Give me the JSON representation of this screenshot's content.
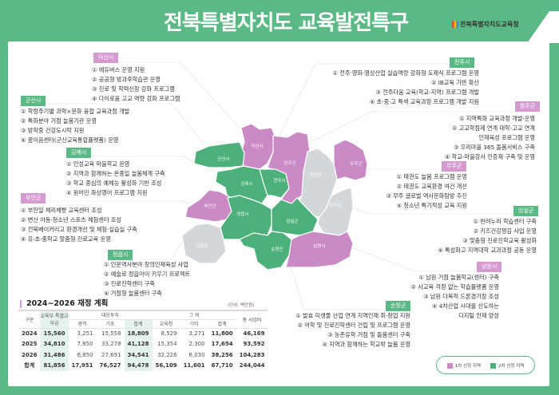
{
  "header": {
    "title": "전북특별자치도 교육발전특구",
    "org": "전북특별자치도교육청"
  },
  "colors": {
    "frame": "#5bb985",
    "first_round": "#c98ac6",
    "second_round": "#4cb07a",
    "not_selected": "#d3d7da"
  },
  "regions": [
    {
      "name": "익산시",
      "round": 1,
      "items": [
        "① 에듀버스 운영 지원",
        "② 공공형 방과후학습관 운영",
        "③ 진로 및 학력신장 강화 프로그램",
        "④ 다이로움 고교 역량 강화 프로그램"
      ]
    },
    {
      "name": "군산시",
      "round": 2,
      "items": [
        "① 학령주기별 과학×문화 융합 교육과정 개발",
        "② 특화분야 거점 늘봄기관 운영",
        "③ 방학중 건강도시락 지원",
        "④ 꿈이음센터(군산교육통합플랫폼) 운영"
      ]
    },
    {
      "name": "김제시",
      "round": 2,
      "items": [
        "① 인성교육 마을학교 운영",
        "② 지역과 함께하는 온종일 늘봄체계 구축",
        "③ 학교 중심의 예체능 활성화 기반 조성",
        "④ 원어민 화상영어 프로그램 지원"
      ]
    },
    {
      "name": "부안군",
      "round": 1,
      "items": [
        "① 부안일 체리체빵 교육센터 조성",
        "② 변산 아동·청소년 스포츠 체험센터 조성",
        "③ 전북베이커리고 환경개선 및 체험·실습실 구축",
        "④ 유·초·중학교 맞춤형 진로교육 운영"
      ]
    },
    {
      "name": "정읍시",
      "round": 2,
      "items": [
        "① 인문역사분야 창의인재육성 사업",
        "② 예술로 정읍아이 키우기 프로젝트",
        "③ 진로진학센터 구축",
        "④ 거점형 늘봄센터 구축"
      ]
    },
    {
      "name": "전주시",
      "round": 2,
      "items": [
        "① 전주 영화·영상산업 실습역량 강화형 도제식 프로그램 운영",
        "② IB교육 기반 확산",
        "③ 전주다움 교육(학교-지역) 프로그램 개발",
        "④ 초·중·고 특색 교육과정 프로그램 개발 지원"
      ]
    },
    {
      "name": "완주군",
      "round": 1,
      "items": [
        "① 지역특화 교육과정 개발·운영",
        "② 고교학점제 연계 대학-고교 연계",
        "인재육성 프로그램 운영",
        "③ 우리마을 365 돌봄서비스 구축",
        "④ 학교-마을강사 인증제 구축 및 운영"
      ]
    },
    {
      "name": "무주군",
      "round": 1,
      "items": [
        "① 태권도 늘봄 프로그램 운영",
        "② 태권도 교육환경 여건 개선",
        "③ 무주 글로벌 역사문화탐방 추진",
        "④ 청소년 특기적성 교육 지원"
      ]
    },
    {
      "name": "임실군",
      "round": 2,
      "items": [
        "① 반려누리 학습센터 구축",
        "② 키즈건강챙김 사업 운영",
        "③ 맞춤형 진로진학교육 활성화",
        "④ 특성화고 지역대학 교과과정 공동 운영"
      ]
    },
    {
      "name": "남원시",
      "round": 1,
      "items": [
        "① 남원 거점 늘봄학교(센터) 구축",
        "② 사교육 걱정 없는 학습플랫폼 운영",
        "③ 남원 다목적 드론경기장 조성",
        "④ 4차산업 시대를 선도하는",
        "디지털 인재 양성"
      ]
    },
    {
      "name": "순창군",
      "round": 2,
      "items": [
        "① 발효 미생물 산업 연계 지역인재 취·창업 지원",
        "② 어학 및 진로진학센터 건립 및 프로그램 운영",
        "③ 농촌유학 거점 및 돌봄센터 구축",
        "④ 지역과 함께하는 학교밖 늘봄 운영"
      ]
    }
  ],
  "map_labels": {
    "iksan": "익산시",
    "gunsan": "군산시",
    "wanju": "완주군",
    "jinan": "진안군",
    "muju": "무주군",
    "gimje": "김제시",
    "jeonju": "전주시",
    "buan": "부안군",
    "jeongeup": "정읍시",
    "imsil": "임실군",
    "jangsu": "장수군",
    "gochang": "고창군",
    "sunchang": "순창군",
    "namwon": "남원시"
  },
  "table": {
    "title": "2024~2026 재정 계획",
    "unit": "(단위: 백만원)",
    "headers": {
      "category": "구분",
      "moe": "교육부 특별교부금",
      "matching": "대응투자",
      "metro": "광역",
      "basic": "기초",
      "sum": "합계",
      "other": "그 외",
      "office": "교육청",
      "etc": "기타",
      "sum2": "합계",
      "total": "총 사업비"
    },
    "rows": [
      [
        "2024",
        "15,560",
        "3,251",
        "15,558",
        "18,809",
        "8,529",
        "3,271",
        "11,800",
        "46,169"
      ],
      [
        "2025",
        "34,810",
        "7,850",
        "33,278",
        "41,128",
        "15,354",
        "2,300",
        "17,654",
        "93,592"
      ],
      [
        "2026",
        "31,486",
        "6,850",
        "27,691",
        "34,541",
        "32,226",
        "6,030",
        "38,256",
        "104,283"
      ],
      [
        "합계",
        "81,856",
        "17,951",
        "76,527",
        "94,478",
        "56,109",
        "11,601",
        "67,710",
        "244,044"
      ]
    ]
  },
  "legend": {
    "first": "1차 선정 지역",
    "second": "2차 선정 지역"
  }
}
